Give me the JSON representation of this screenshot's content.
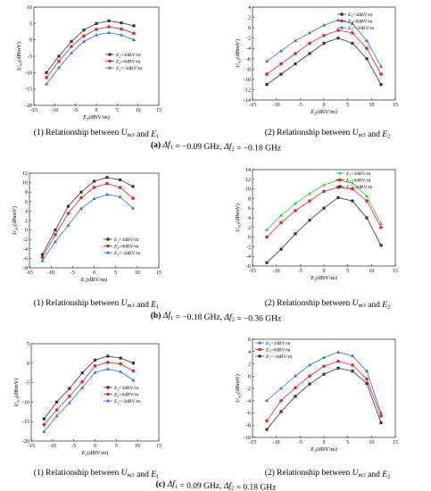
{
  "chart_data": [
    {
      "type": "line",
      "panel": "a1",
      "title": "",
      "xlabel": "E1(dBV/m)",
      "ylabel": "Um3(dBmV)",
      "xlim": [
        -15,
        15
      ],
      "ylim": [
        -20,
        10
      ],
      "xticks": [
        -15,
        -10,
        -5,
        0,
        5,
        10,
        15
      ],
      "yticks": [
        -20,
        -15,
        -10,
        -5,
        0,
        5,
        10
      ],
      "legend": "right",
      "x": [
        -12,
        -9,
        -6,
        -3,
        0,
        3,
        6,
        9
      ],
      "series": [
        {
          "name": "E2=3dBV/m",
          "color": "#333333",
          "marker": "square",
          "values": [
            -10,
            -5,
            -0.5,
            3,
            5,
            5.8,
            5.2,
            4.3
          ]
        },
        {
          "name": "E2=0dBV/m",
          "color": "#e8242a",
          "marker": "circle",
          "values": [
            -11.5,
            -6.5,
            -2,
            1.2,
            3.2,
            4,
            3.3,
            2
          ]
        },
        {
          "name": "E2=-3dBV/m",
          "color": "#2f6fd6",
          "marker": "triangle",
          "values": [
            -13.5,
            -8.5,
            -4,
            -0.5,
            1.5,
            2.2,
            1.5,
            0
          ]
        }
      ]
    },
    {
      "type": "line",
      "panel": "a2",
      "title": "",
      "xlabel": "E2(dBV/m)",
      "ylabel": "Um3(dBmV)",
      "xlim": [
        -15,
        15
      ],
      "ylim": [
        -14,
        4
      ],
      "xticks": [
        -15,
        -10,
        -5,
        0,
        5,
        10,
        15
      ],
      "yticks": [
        -14,
        -12,
        -10,
        -8,
        -6,
        -4,
        -2,
        0,
        2,
        4
      ],
      "legend": "top-right",
      "x": [
        -12,
        -9,
        -6,
        -3,
        0,
        3,
        6,
        9,
        12
      ],
      "series": [
        {
          "name": "E1=3dBV/m",
          "color": "#333333",
          "marker": "square",
          "values": [
            -11,
            -9,
            -7,
            -5,
            -3,
            -2,
            -3,
            -6,
            -11
          ]
        },
        {
          "name": "E1=0dBV/m",
          "color": "#e8242a",
          "marker": "circle",
          "values": [
            -9,
            -7,
            -5,
            -3,
            -1.5,
            -0.5,
            -1,
            -4,
            -9
          ]
        },
        {
          "name": "E1=-3dBV/m",
          "color": "#2f6fd6",
          "marker": "triangle",
          "values": [
            -6.5,
            -4.5,
            -2.5,
            -1,
            0.5,
            1.5,
            0.8,
            -2.5,
            -7.5
          ]
        }
      ]
    },
    {
      "type": "line",
      "panel": "b1",
      "title": "",
      "xlabel": "E1(dBV/m)",
      "ylabel": "Um3(dBmV)",
      "xlim": [
        -15,
        15
      ],
      "ylim": [
        -8,
        12
      ],
      "xticks": [
        -15,
        -10,
        -5,
        0,
        5,
        10,
        15
      ],
      "yticks": [
        -8,
        -6,
        -4,
        -2,
        0,
        2,
        4,
        6,
        8,
        10,
        12
      ],
      "legend": "bottom-right",
      "x": [
        -12,
        -9,
        -6,
        -3,
        0,
        3,
        6,
        9
      ],
      "series": [
        {
          "name": "E2=3dBV/m",
          "color": "#333333",
          "marker": "square",
          "values": [
            -5.2,
            0,
            5,
            8,
            10.3,
            11.1,
            10.6,
            9.2
          ]
        },
        {
          "name": "E2=0dBV/m",
          "color": "#e8242a",
          "marker": "circle",
          "values": [
            -5.8,
            -1,
            3.5,
            6.8,
            9,
            9.8,
            9,
            6.7
          ]
        },
        {
          "name": "E2=-3dBV/m",
          "color": "#2f6fd6",
          "marker": "triangle",
          "values": [
            -6.5,
            -2.5,
            1,
            4.5,
            6.6,
            7.5,
            7,
            4.6
          ]
        }
      ]
    },
    {
      "type": "line",
      "panel": "b2",
      "title": "",
      "xlabel": "E2(dBV/m)",
      "ylabel": "Um3(dBmV)",
      "xlim": [
        -15,
        15
      ],
      "ylim": [
        -6,
        14
      ],
      "xticks": [
        -15,
        -10,
        -5,
        0,
        5,
        10,
        15
      ],
      "yticks": [
        -6,
        -4,
        -2,
        0,
        2,
        4,
        6,
        8,
        10,
        12,
        14
      ],
      "legend": "top-right",
      "x": [
        -12,
        -9,
        -6,
        -3,
        0,
        3,
        6,
        9,
        12
      ],
      "series": [
        {
          "name": "E1=3dBV/m",
          "color": "#2ecc2e",
          "marker": "triangle",
          "values": [
            1.5,
            4.5,
            7,
            9,
            10.8,
            11.8,
            11.2,
            8.5,
            2.8
          ]
        },
        {
          "name": "E1=0dBV/m",
          "color": "#e8242a",
          "marker": "circle",
          "values": [
            0,
            3,
            5.5,
            7.5,
            9.5,
            10.3,
            10,
            7.5,
            2
          ]
        },
        {
          "name": "E1=-3dBV/m",
          "color": "#333333",
          "marker": "square",
          "values": [
            -5.3,
            -2.5,
            0.7,
            3.5,
            6,
            8.2,
            7.5,
            4,
            -1.7
          ]
        }
      ]
    },
    {
      "type": "line",
      "panel": "c1",
      "title": "",
      "xlabel": "E1(dBV/m)",
      "ylabel": "Um3(dBmV)",
      "xlim": [
        -15,
        15
      ],
      "ylim": [
        -20,
        5
      ],
      "xticks": [
        -15,
        -10,
        -5,
        0,
        5,
        10,
        15
      ],
      "yticks": [
        -20,
        -15,
        -10,
        -5,
        0,
        5
      ],
      "legend": "right",
      "x": [
        -12,
        -9,
        -6,
        -3,
        0,
        3,
        6,
        9
      ],
      "series": [
        {
          "name": "E2=3dBV/m",
          "color": "#333333",
          "marker": "square",
          "values": [
            -14.3,
            -10,
            -6.5,
            -2.5,
            0.8,
            1.8,
            1.3,
            0
          ]
        },
        {
          "name": "E2=0dBV/m",
          "color": "#e8242a",
          "marker": "circle",
          "values": [
            -15.8,
            -12,
            -8.5,
            -4.8,
            -0.7,
            0.2,
            -0.2,
            -2
          ]
        },
        {
          "name": "E2=-3dBV/m",
          "color": "#2f6fd6",
          "marker": "triangle",
          "values": [
            -17.6,
            -13.6,
            -10.2,
            -6.3,
            -2.4,
            -1.5,
            -2.2,
            -4.4
          ]
        }
      ]
    },
    {
      "type": "line",
      "panel": "c2",
      "title": "",
      "xlabel": "E2(dBV/m)",
      "ylabel": "Um3(dBmV)",
      "xlim": [
        -15,
        15
      ],
      "ylim": [
        -10,
        6
      ],
      "xticks": [
        -15,
        -10,
        -5,
        0,
        5,
        10,
        15
      ],
      "yticks": [
        -10,
        -8,
        -6,
        -4,
        -2,
        0,
        2,
        4,
        6
      ],
      "legend": "top-left",
      "x": [
        -12,
        -9,
        -6,
        -3,
        0,
        3,
        6,
        9,
        12
      ],
      "series": [
        {
          "name": "E1=3dBV/m",
          "color": "#2f6fd6",
          "marker": "triangle",
          "values": [
            -4,
            -2,
            0,
            1.8,
            3,
            3.9,
            3.3,
            0.8,
            -6
          ]
        },
        {
          "name": "E1=0dBV/m",
          "color": "#e8242a",
          "marker": "circle",
          "values": [
            -7.3,
            -4,
            -1.9,
            0,
            1.6,
            2.4,
            1.8,
            -0.5,
            -6.5
          ]
        },
        {
          "name": "E1=-3dBV/m",
          "color": "#333333",
          "marker": "square",
          "values": [
            -8.7,
            -5.8,
            -3.3,
            -1.3,
            0.3,
            1.3,
            0.8,
            -1.2,
            -7.6
          ]
        }
      ]
    }
  ],
  "captions": {
    "a1": "(1) Relationship between Um3 and E1",
    "a2": "(2) Relationship between Um3 and E2",
    "a_row": "(a) Δf1 = −0.09 GHz, Δf2 = −0.18 GHz",
    "b1": "(1) Relationship between Um3 and E1",
    "b2": "(2) Relationship between Um3 and E2",
    "b_row": "(b) Δf1 = −0.18 GHz, Δf2 = −0.36 GHz",
    "c1": "(1) Relationship between Um3 and E1",
    "c2": "(2) Relationship between Um3 and E2",
    "c_row": "(c) Δf1 = 0.09 GHz, Δf2 = 0.18 GHz"
  }
}
